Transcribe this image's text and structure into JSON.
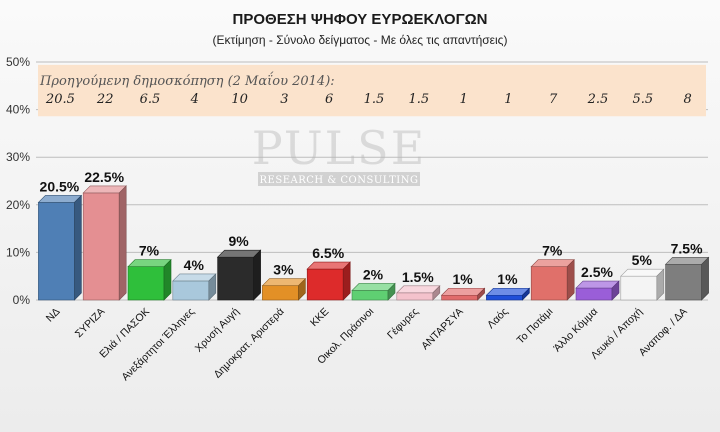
{
  "chart_data": {
    "type": "bar",
    "title": "ΠΡΟΘΕΣΗ ΨΗΦΟΥ ΕΥΡΩΕΚΛΟΓΩΝ",
    "subtitle": "(Εκτίμηση - Σύνολο δείγματος - Με όλες τις απαντήσεις)",
    "categories": [
      "ΝΔ",
      "ΣΥΡΙΖΑ",
      "Ελιά / ΠΑΣΟΚ",
      "Ανεξάρτητοι Έλληνες",
      "Χρυσή Αυγή",
      "Δημοκρατ. Αριστερά",
      "ΚΚΕ",
      "Οικολ. Πράσινοι",
      "Γέφυρες",
      "ΑΝΤΑΡΣΥΑ",
      "Λαός",
      "Το Ποτάμι",
      "Άλλο Κόμμα",
      "Λευκό / Αποχή",
      "Αναποφ. / ΔΑ"
    ],
    "values": [
      20.5,
      22.5,
      7,
      4,
      9,
      3,
      6.5,
      2,
      1.5,
      1,
      1,
      7,
      2.5,
      5,
      7.5
    ],
    "value_labels": [
      "20.5%",
      "22.5%",
      "7%",
      "4%",
      "9%",
      "3%",
      "6.5%",
      "2%",
      "1.5%",
      "1%",
      "1%",
      "7%",
      "2.5%",
      "5%",
      "7.5%"
    ],
    "colors": [
      "#4f7fb5",
      "#e48f92",
      "#2fbf3b",
      "#a9c8dc",
      "#2b2b2b",
      "#e39026",
      "#dd2b2b",
      "#5fcf72",
      "#f4c2cc",
      "#e16b6b",
      "#1f4fd8",
      "#e0706a",
      "#9a5ed8",
      "#f4f4f4",
      "#7e7e7e"
    ],
    "ylim": [
      0,
      50
    ],
    "yticks": [
      "0%",
      "10%",
      "20%",
      "30%",
      "40%",
      "50%"
    ],
    "grid": true,
    "previous_poll": {
      "label": "Προηγούμενη δημοσκόπηση  (2 Μαΐου 2014):",
      "values": [
        "20.5",
        "22",
        "6.5",
        "4",
        "10",
        "3",
        "6",
        "1.5",
        "1.5",
        "1",
        "1",
        "7",
        "2.5",
        "5.5",
        "8"
      ],
      "band_color": "#fbe3cc"
    }
  },
  "watermark": {
    "logo": "PULSE",
    "tagline": "RESEARCH & CONSULTING"
  }
}
